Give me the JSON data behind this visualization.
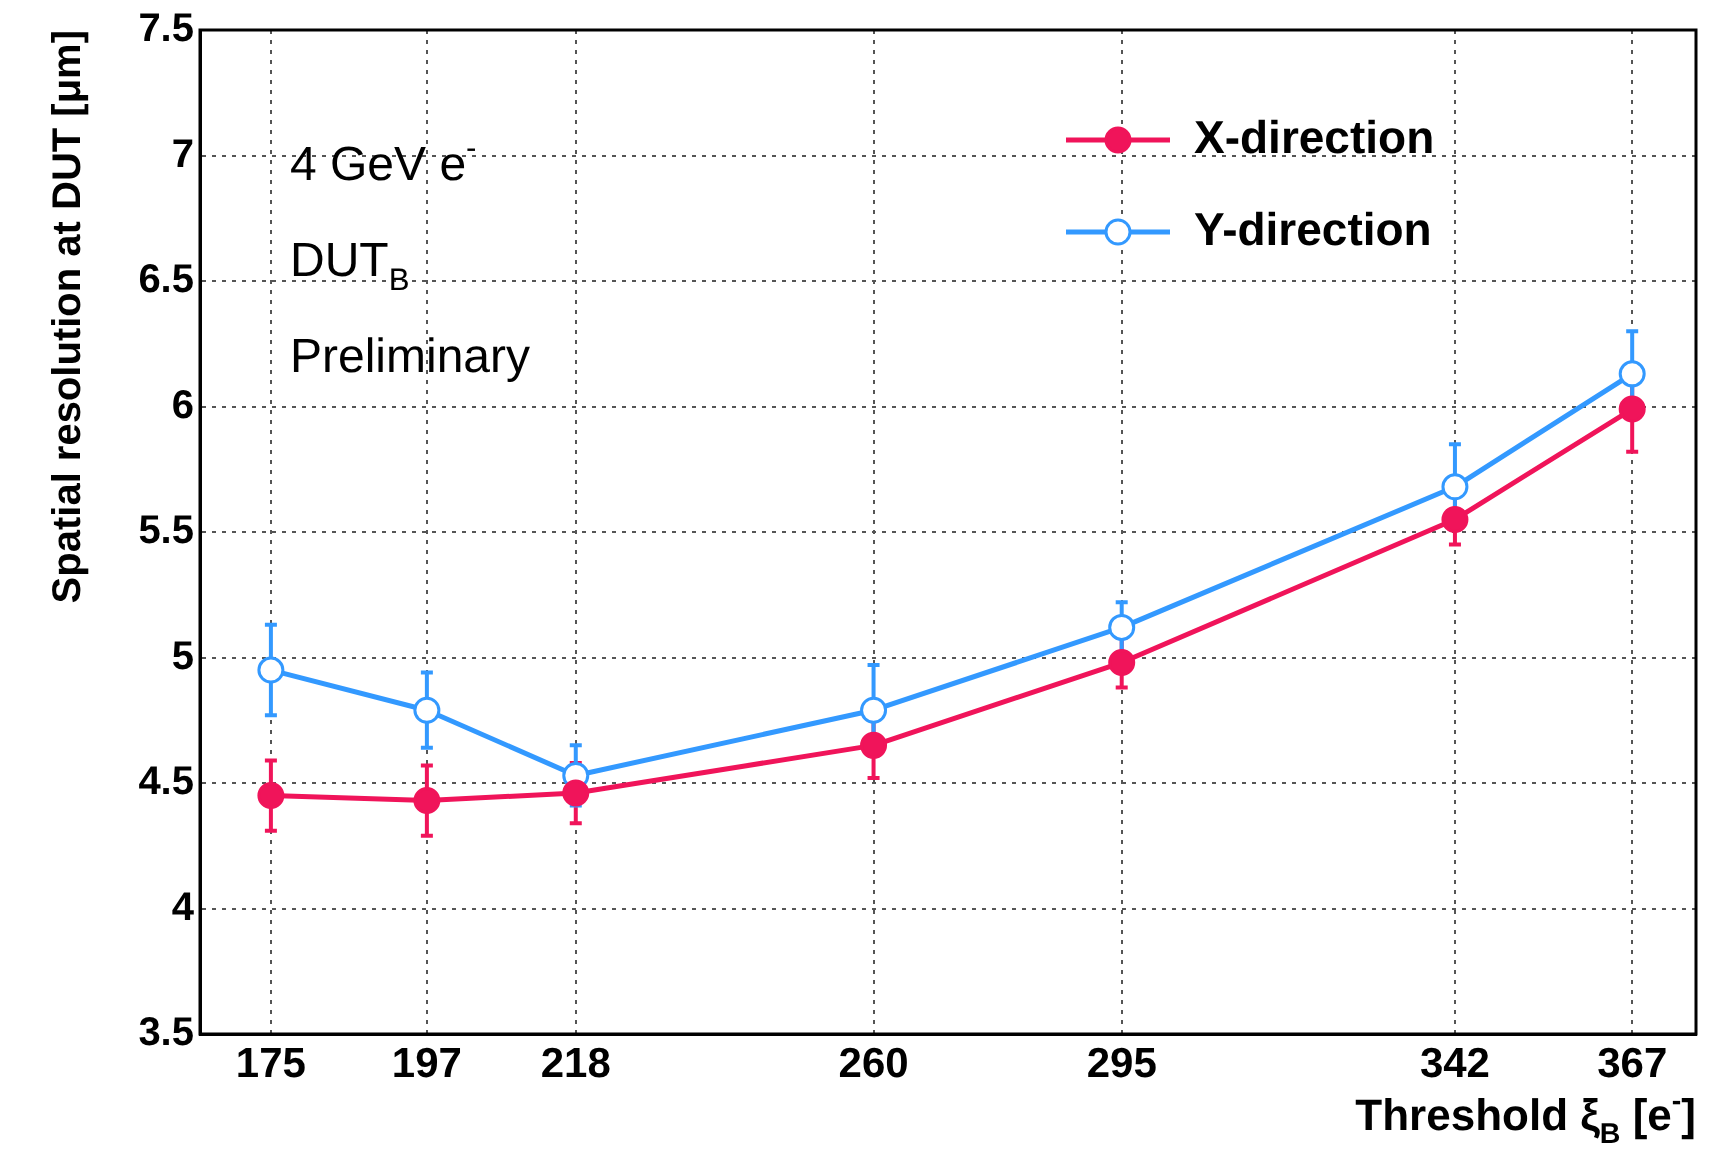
{
  "chart_data": {
    "type": "line",
    "xlabel": "Threshold ξ$_{B}$ [e$^{-}$]",
    "ylabel": "Spatial resolution at DUT [μm]",
    "annotations": [
      "4 GeV e$^{-}$",
      "DUT$_{B}$",
      "Preliminary"
    ],
    "x": [
      175,
      197,
      218,
      260,
      295,
      342,
      367
    ],
    "series": [
      {
        "name": "X-direction",
        "color": "#f0145a",
        "values": [
          4.45,
          4.43,
          4.46,
          4.65,
          4.98,
          5.55,
          5.99
        ],
        "errors": [
          0.14,
          0.14,
          0.12,
          0.13,
          0.1,
          0.1,
          0.17
        ]
      },
      {
        "name": "Y-direction",
        "color": "#3399ff",
        "values": [
          4.95,
          4.79,
          4.53,
          4.79,
          5.12,
          5.68,
          6.13
        ],
        "errors": [
          0.18,
          0.15,
          0.12,
          0.18,
          0.1,
          0.17,
          0.17
        ]
      }
    ],
    "xlim": [
      165,
      376
    ],
    "xticks": [
      175,
      197,
      218,
      260,
      295,
      342,
      367
    ],
    "ylim": [
      3.5,
      7.5
    ],
    "yticks": [
      3.5,
      4,
      4.5,
      5,
      5.5,
      6,
      6.5,
      7,
      7.5
    ],
    "grid": true,
    "legend": "top right",
    "marker": "circle",
    "line_style": "solid"
  }
}
